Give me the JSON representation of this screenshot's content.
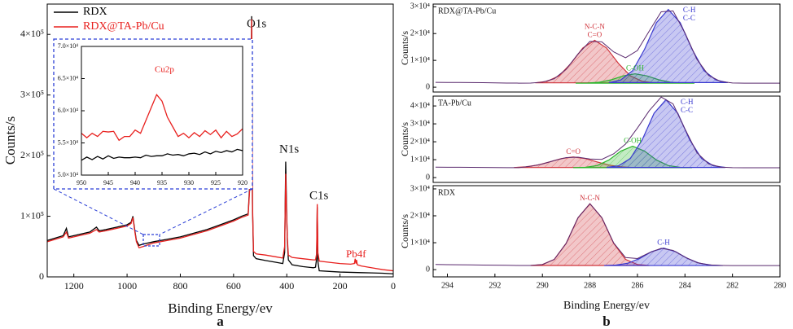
{
  "chart_data": [
    {
      "type": "line",
      "x_label": "Binding Energy/ev",
      "y_label": "Counts/s",
      "panel_label": "a",
      "xlim": [
        1300,
        0
      ],
      "xticks": [
        1200,
        1000,
        800,
        600,
        400,
        200,
        0
      ],
      "ylim": [
        0,
        450000
      ],
      "yticks": [
        0,
        {
          "value": 100000,
          "label": "1×10⁵"
        },
        {
          "value": 200000,
          "label": "2×10⁵"
        },
        {
          "value": 300000,
          "label": "3×10⁵"
        },
        {
          "value": 400000,
          "label": "4×10⁵"
        }
      ],
      "legend": "upper left",
      "annotations": [
        "O1s",
        "N1s",
        "C1s",
        "Pb4f"
      ],
      "series": [
        {
          "name": "RDX",
          "color": "#000000",
          "x": [
            1300,
            1270,
            1240,
            1228,
            1220,
            1180,
            1140,
            1115,
            1105,
            1080,
            1040,
            1000,
            985,
            978,
            972,
            965,
            955,
            940,
            900,
            850,
            800,
            750,
            700,
            650,
            600,
            570,
            545,
            536,
            532,
            529,
            525,
            515,
            480,
            440,
            415,
            408,
            404,
            401,
            398,
            394,
            380,
            340,
            300,
            292,
            288,
            285.5,
            283,
            278,
            240,
            200,
            160,
            120,
            80,
            40,
            0
          ],
          "values": [
            60000,
            64000,
            68000,
            80000,
            66000,
            70000,
            74000,
            82000,
            76000,
            78000,
            82000,
            86000,
            90000,
            100000,
            80000,
            60000,
            52000,
            54000,
            58000,
            62000,
            66000,
            72000,
            78000,
            86000,
            94000,
            100000,
            104000,
            180000,
            430000,
            120000,
            35000,
            30000,
            27000,
            24000,
            22000,
            40000,
            190000,
            120000,
            60000,
            28000,
            20000,
            17000,
            15000,
            16000,
            30000,
            115000,
            25000,
            10000,
            9000,
            8000,
            7500,
            7000,
            6500,
            6000,
            5000
          ]
        },
        {
          "name": "RDX@TA-Pb/Cu",
          "color": "#e8201e",
          "x": [
            1300,
            1270,
            1240,
            1228,
            1220,
            1180,
            1140,
            1115,
            1105,
            1080,
            1040,
            1000,
            985,
            978,
            972,
            965,
            955,
            940,
            900,
            850,
            800,
            750,
            700,
            650,
            600,
            570,
            545,
            536,
            532,
            529,
            525,
            515,
            480,
            440,
            415,
            408,
            404,
            401,
            398,
            394,
            380,
            340,
            300,
            292,
            288,
            285.5,
            283,
            278,
            240,
            200,
            160,
            146,
            143,
            140,
            138,
            135,
            120,
            80,
            40,
            0
          ],
          "values": [
            58000,
            62000,
            66000,
            74000,
            64000,
            68000,
            72000,
            78000,
            74000,
            76000,
            80000,
            84000,
            88000,
            98000,
            78000,
            58000,
            48000,
            50000,
            56000,
            60000,
            64000,
            70000,
            76000,
            84000,
            92000,
            98000,
            102000,
            170000,
            425000,
            125000,
            42000,
            38000,
            36000,
            33000,
            31000,
            50000,
            170000,
            110000,
            65000,
            36000,
            32000,
            30000,
            28000,
            28000,
            38000,
            120000,
            40000,
            26000,
            24000,
            22000,
            21000,
            22000,
            30000,
            22000,
            28000,
            20000,
            18000,
            15000,
            12000,
            10000
          ]
        }
      ]
    },
    {
      "type": "line",
      "annotations": [
        "Cu2p"
      ],
      "xlim": [
        950,
        920
      ],
      "xticks": [
        950,
        945,
        940,
        935,
        930,
        925,
        920
      ],
      "ylim": [
        50000,
        70000
      ],
      "yticks": [
        {
          "value": 50000,
          "label": "5.0×10⁴"
        },
        {
          "value": 55000,
          "label": "5.5×10⁴"
        },
        {
          "value": 60000,
          "label": "6.0×10⁴"
        },
        {
          "value": 65000,
          "label": "6.5×10⁴"
        },
        {
          "value": 70000,
          "label": "7.0×10⁴"
        }
      ],
      "x": [
        950,
        949,
        948,
        947,
        946,
        945,
        944,
        943,
        942,
        941,
        940,
        939,
        938,
        937,
        936,
        935,
        934,
        933,
        932,
        931,
        930,
        929,
        928,
        927,
        926,
        925,
        924,
        923,
        922,
        921,
        920
      ],
      "series": [
        {
          "color": "#000000",
          "values": [
            52300,
            52800,
            52400,
            52900,
            52500,
            53000,
            52600,
            52800,
            52700,
            52700,
            52800,
            52700,
            53100,
            52900,
            53000,
            53000,
            53300,
            53100,
            53200,
            53000,
            53300,
            53400,
            53200,
            53600,
            53300,
            53700,
            53500,
            53800,
            53600,
            54000,
            53800
          ]
        },
        {
          "color": "#e8201e",
          "values": [
            56500,
            55800,
            56500,
            56000,
            56800,
            56700,
            56800,
            55400,
            56000,
            56000,
            57000,
            56500,
            58500,
            60500,
            62500,
            61500,
            59000,
            57500,
            56000,
            56500,
            55800,
            56600,
            56000,
            56900,
            56300,
            57000,
            55800,
            56800,
            56000,
            56400,
            57200
          ]
        }
      ]
    },
    {
      "type": "fit",
      "title": "RDX@TA-Pb/Cu",
      "y_label": "Counts/s",
      "xlim": [
        294.6,
        280
      ],
      "ylim": [
        -1800,
        31000
      ],
      "yticks": [
        0,
        {
          "value": 10000,
          "label": "1×10⁴"
        },
        {
          "value": 20000,
          "label": "2×10⁴"
        },
        {
          "value": 30000,
          "label": "3×10⁴"
        }
      ],
      "series": [
        {
          "labels": [
            "N-C-N",
            "C=O"
          ],
          "color": "#d0343c",
          "x": [
            285.3,
            285.8,
            286.3,
            286.8,
            287.3,
            287.8,
            288.3,
            288.8,
            289.3,
            289.8,
            290.3
          ],
          "values": [
            1628,
            2204,
            4220,
            8860,
            14620,
            17500,
            14620,
            8860,
            4220,
            2204,
            1628
          ]
        },
        {
          "labels": [
            "C-OH"
          ],
          "color": "#2cb52c",
          "x": [
            283.6,
            284.1,
            284.6,
            285.1,
            285.6,
            286.1,
            286.6,
            287.1,
            287.6,
            288.1,
            288.6
          ],
          "values": [
            1507,
            1560,
            1850,
            2760,
            4213,
            5000,
            4213,
            2760,
            1850,
            1560,
            1507
          ]
        },
        {
          "labels": [
            "C-H",
            "C-C"
          ],
          "color": "#3a3ad0",
          "x": [
            282.2,
            282.7,
            283.2,
            283.7,
            284.2,
            284.7,
            285.2,
            285.7,
            286.2,
            286.7,
            287.2
          ],
          "values": [
            1720,
            2710,
            6175,
            14150,
            24050,
            29000,
            24050,
            14150,
            6175,
            2710,
            1720
          ]
        },
        {
          "color": "#5a2a6e",
          "x": [
            294.5,
            294,
            293.5,
            293,
            292.5,
            292,
            291.5,
            291,
            290.5,
            290,
            289.5,
            289,
            288.5,
            288,
            287.5,
            287,
            286.5,
            286,
            285.5,
            285,
            284.5,
            284,
            283.5,
            283,
            282.5,
            282,
            281.5,
            281,
            280.5,
            280
          ],
          "values": [
            1800,
            1780,
            1750,
            1720,
            1680,
            1620,
            1560,
            1520,
            1554,
            1864,
            3170,
            6700,
            12400,
            17090,
            16930,
            13170,
            10970,
            13670,
            20980,
            28120,
            28460,
            20240,
            10440,
            4360,
            2130,
            1590,
            1500,
            1500,
            1500,
            1500
          ]
        }
      ]
    },
    {
      "type": "fit",
      "title": "TA-Pb/Cu",
      "y_label": "Counts/s",
      "xlim": [
        294.6,
        280
      ],
      "ylim": [
        -2700,
        45500
      ],
      "yticks": [
        0,
        {
          "value": 10000,
          "label": "1×10⁴"
        },
        {
          "value": 20000,
          "label": "2×10⁴"
        },
        {
          "value": 30000,
          "label": "3×10⁴"
        },
        {
          "value": 40000,
          "label": "4×10⁴"
        }
      ],
      "series": [
        {
          "labels": [
            "C=O"
          ],
          "color": "#d0343c",
          "x": [
            286.2,
            286.7,
            287.2,
            287.7,
            288.2,
            288.7,
            289.2,
            289.7,
            290.2,
            290.7,
            291.2
          ],
          "values": [
            5626,
            6010,
            7000,
            8740,
            10640,
            11500,
            10640,
            8740,
            7000,
            6010,
            5626
          ]
        },
        {
          "labels": [
            "C-OH"
          ],
          "color": "#2cb52c",
          "x": [
            283.7,
            284.2,
            284.7,
            285.2,
            285.7,
            286.2,
            286.7,
            287.2,
            287.7,
            288.2,
            288.7
          ],
          "values": [
            5524,
            5704,
            6700,
            9820,
            14800,
            17500,
            14800,
            9820,
            6700,
            5704,
            5524
          ]
        },
        {
          "labels": [
            "C-H",
            "C-C"
          ],
          "color": "#3a3ad0",
          "x": [
            282.3,
            282.8,
            283.3,
            283.8,
            284.3,
            284.8,
            285.3,
            285.8,
            286.3,
            286.8,
            287.3
          ],
          "values": [
            5652,
            6564,
            10630,
            21080,
            35900,
            43500,
            35900,
            21080,
            10630,
            6564,
            5652
          ]
        },
        {
          "color": "#5a2a6e",
          "x": [
            294.5,
            294,
            293.5,
            293,
            292.5,
            292,
            291.5,
            291,
            290.5,
            290,
            289.5,
            289,
            288.5,
            288,
            287.5,
            287,
            286.5,
            286,
            285.5,
            285,
            284.5,
            284,
            283.5,
            283,
            282.5,
            282,
            281.5,
            281,
            280.5,
            280
          ],
          "values": [
            5800,
            5780,
            5750,
            5700,
            5650,
            5600,
            5560,
            5520,
            6310,
            7600,
            9520,
            11180,
            11400,
            10380,
            10170,
            13270,
            18720,
            27670,
            37400,
            44960,
            41130,
            27160,
            13950,
            7630,
            5840,
            5550,
            5500,
            5500,
            5500,
            5500
          ]
        }
      ]
    },
    {
      "type": "fit",
      "title": "RDX",
      "y_label": "Counts/s",
      "x_label": "Binding Energy/ev",
      "panel_label": "b",
      "xlim": [
        294.6,
        280
      ],
      "xticks": [
        294,
        292,
        290,
        288,
        286,
        284,
        282,
        280
      ],
      "ylim": [
        -2700,
        31200
      ],
      "yticks": [
        0,
        {
          "value": 10000,
          "label": "1×10⁴"
        },
        {
          "value": 20000,
          "label": "2×10⁴"
        },
        {
          "value": 30000,
          "label": "3×10⁴"
        }
      ],
      "series": [
        {
          "labels": [
            "N-C-N"
          ],
          "color": "#d0343c",
          "x": [
            285.5,
            286,
            286.5,
            287,
            287.5,
            288,
            288.5,
            289,
            289.5,
            290,
            290.5
          ],
          "values": [
            1546,
            1890,
            3800,
            9780,
            19300,
            24500,
            19300,
            9780,
            3800,
            1890,
            1546
          ]
        },
        {
          "labels": [
            "C-H"
          ],
          "color": "#3a3ad0",
          "x": [
            282.4,
            282.9,
            283.4,
            283.9,
            284.4,
            284.9,
            285.4,
            285.9,
            286.4,
            286.9,
            287.4
          ],
          "values": [
            1526,
            1682,
            2380,
            4170,
            6700,
            8000,
            6700,
            4170,
            2380,
            1682,
            1526
          ]
        },
        {
          "color": "#5a2a6e",
          "x": [
            294.5,
            294,
            293.5,
            293,
            292.5,
            292,
            291.5,
            291,
            290.5,
            290,
            289.5,
            289,
            288.5,
            288,
            287.5,
            287,
            286.5,
            286,
            285.5,
            285,
            284.5,
            284,
            283.5,
            283,
            282.5,
            282,
            281.5,
            281,
            280.5,
            280
          ],
          "values": [
            1900,
            1850,
            1800,
            1750,
            1700,
            1650,
            1600,
            1550,
            1550,
            1890,
            3800,
            9780,
            19300,
            24500,
            19320,
            9910,
            4470,
            4110,
            6280,
            7940,
            7140,
            4670,
            2640,
            1765,
            1530,
            1500,
            1500,
            1500,
            1500,
            1500
          ]
        }
      ]
    }
  ]
}
